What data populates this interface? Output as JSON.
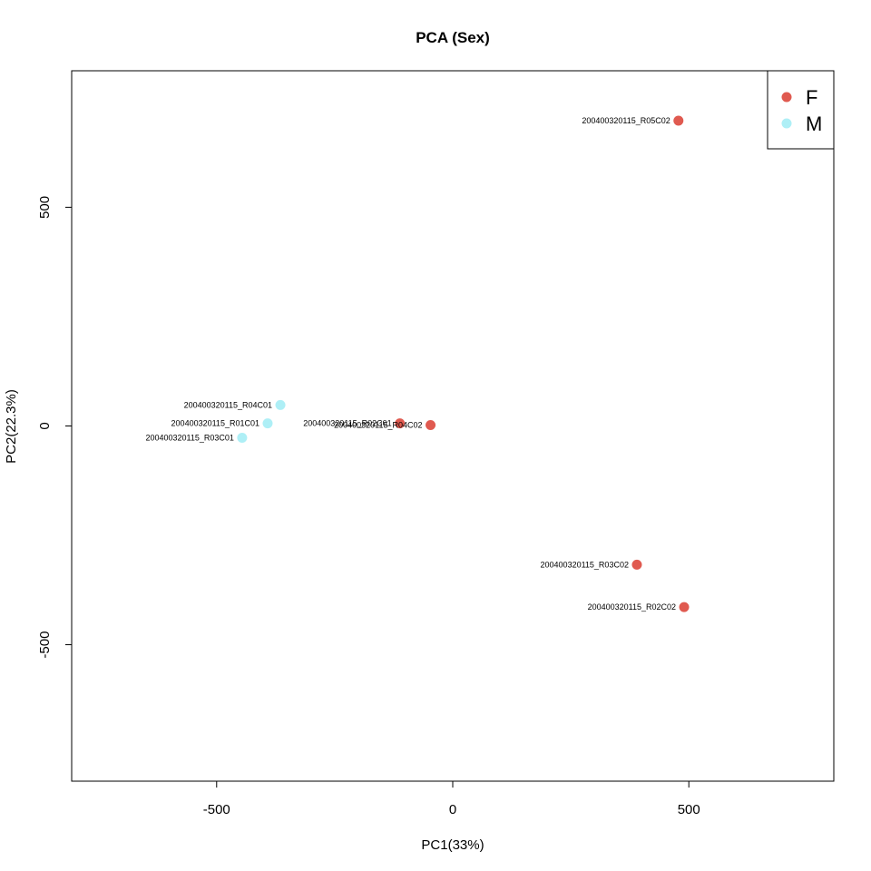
{
  "chart_data": {
    "type": "scatter",
    "title": "PCA (Sex)",
    "xlabel": "PC1(33%)",
    "ylabel": "PC2(22.3%)",
    "xlim": [
      -807,
      807
    ],
    "ylim": [
      -812,
      812
    ],
    "xticks": [
      -500,
      0,
      500
    ],
    "yticks": [
      -500,
      0,
      500
    ],
    "xtick_labels": [
      "-500",
      "0",
      "500"
    ],
    "ytick_labels": [
      "-500",
      "0",
      "500"
    ],
    "grid": false,
    "legend": {
      "position": "top-right",
      "entries": [
        {
          "label": "F",
          "color": "#E05A50"
        },
        {
          "label": "M",
          "color": "#AEEFF6"
        }
      ]
    },
    "series": [
      {
        "name": "F",
        "color": "#E05A50",
        "points": [
          {
            "label": "200400320115_R05C02",
            "x": 478,
            "y": 698
          },
          {
            "label": "200400320115_R02C01",
            "x": -112,
            "y": 6
          },
          {
            "label": "200400320115_R04C02",
            "x": -47,
            "y": 2
          },
          {
            "label": "200400320115_R03C02",
            "x": 390,
            "y": -317
          },
          {
            "label": "200400320115_R02C02",
            "x": 490,
            "y": -414
          }
        ]
      },
      {
        "name": "M",
        "color": "#AEEFF6",
        "points": [
          {
            "label": "200400320115_R04C01",
            "x": -365,
            "y": 48
          },
          {
            "label": "200400320115_R01C01",
            "x": -392,
            "y": 6
          },
          {
            "label": "200400320115_R03C01",
            "x": -446,
            "y": -27
          }
        ]
      }
    ]
  }
}
